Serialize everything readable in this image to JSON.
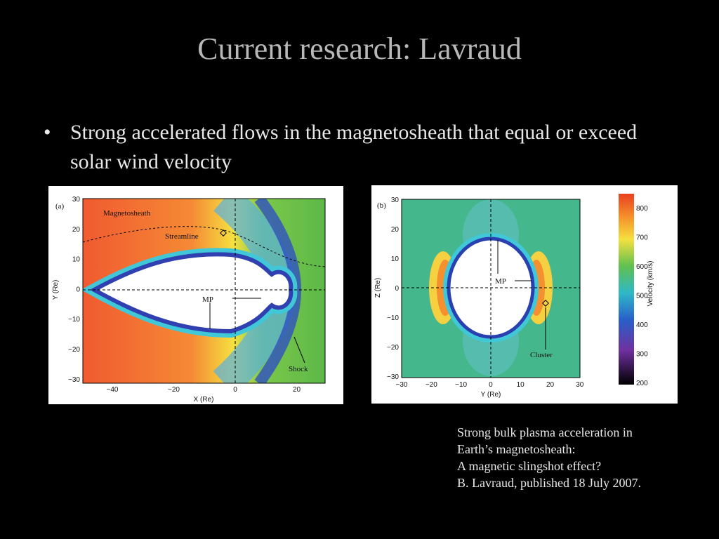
{
  "title": "Current research: Lavraud",
  "bullet": "Strong accelerated flows in the magnetosheath that equal or exceed solar wind velocity",
  "figure_a": {
    "panel_label": "(a)",
    "region_label": "Magnetosheath",
    "streamline_label": "Streamline",
    "mp_label": "MP",
    "shock_label": "Shock",
    "xlabel": "X (Re)",
    "ylabel": "Y (Re)",
    "xticks": [
      "−40",
      "−20",
      "0",
      "20"
    ],
    "yticks": [
      "30",
      "20",
      "10",
      "0",
      "−10",
      "−20",
      "−30"
    ]
  },
  "figure_b": {
    "panel_label": "(b)",
    "mp_label": "MP",
    "cluster_label": "Cluster",
    "xlabel": "Y (Re)",
    "ylabel": "Z (Re)",
    "xticks": [
      "−30",
      "−20",
      "−10",
      "0",
      "10",
      "20",
      "30"
    ],
    "yticks": [
      "30",
      "20",
      "10",
      "0",
      "−10",
      "−20",
      "−30"
    ],
    "colorbar_label": "Velocity (km/s)",
    "colorbar_ticks": [
      "800",
      "700",
      "600",
      "500",
      "400",
      "300",
      "200"
    ]
  },
  "caption": [
    "Strong bulk plasma acceleration in",
    "Earth’s magnetosheath:",
    "A magnetic slingshot effect?",
    "B. Lavraud, published 18 July 2007."
  ]
}
